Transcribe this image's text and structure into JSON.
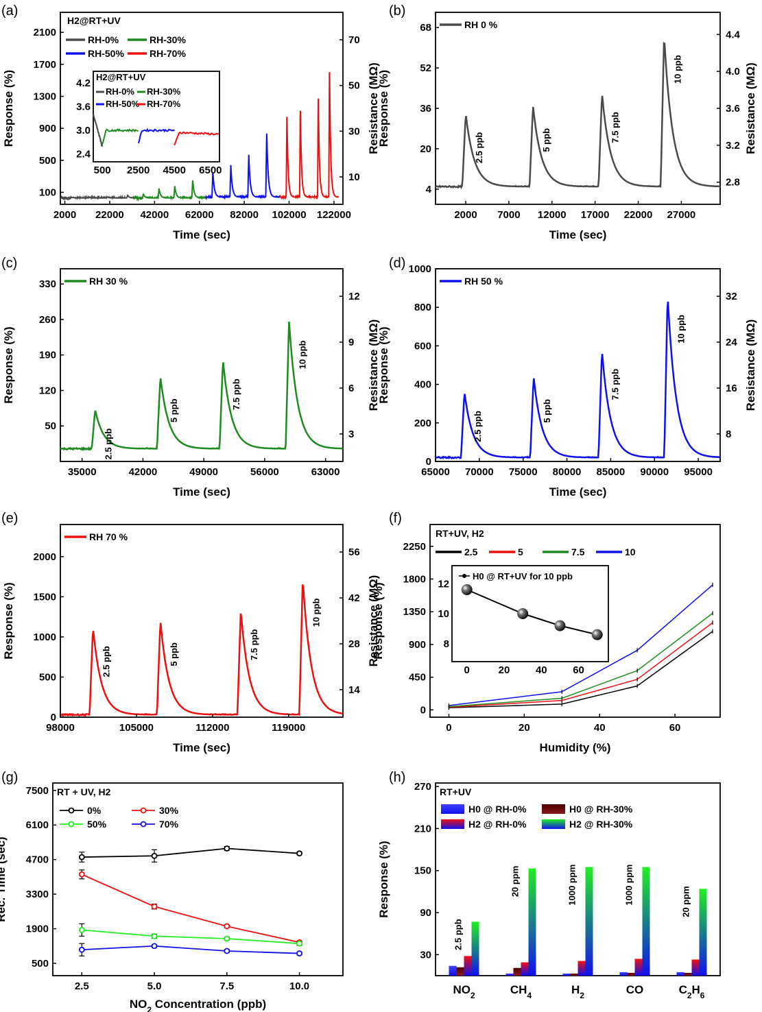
{
  "chart_data": [
    {
      "id": "a",
      "panel_label": "(a)",
      "type": "line",
      "title": "H2@RT+UV",
      "xlabel": "Time (sec)",
      "ylabel": "Response (%)",
      "y2label": "Resistance (MΩ)",
      "xlim": [
        0,
        126000
      ],
      "ylim": [
        -50,
        2350
      ],
      "y2lim": [
        0,
        75
      ],
      "xticks": [
        "2000",
        "22000",
        "42000",
        "62000",
        "82000",
        "102000",
        "122000"
      ],
      "yticks": [
        "100",
        "500",
        "900",
        "1300",
        "1700",
        "2100"
      ],
      "y2ticks": [
        "10",
        "30",
        "50",
        "70"
      ],
      "legend": [
        "RH-0%",
        "RH-30%",
        "RH-50%",
        "RH-70%"
      ],
      "colors": {
        "RH-0%": "#4a4a4a",
        "RH-30%": "#1f8a1f",
        "RH-50%": "#1010ee",
        "RH-70%": "#ee1010"
      },
      "series": [
        {
          "name": "RH-0%",
          "peaks": [
            {
              "x": 5000,
              "y": 38
            },
            {
              "x": 13000,
              "y": 36
            },
            {
              "x": 21000,
              "y": 42
            },
            {
              "x": 30000,
              "y": 64
            }
          ],
          "range": [
            0,
            33000
          ],
          "base": 30
        },
        {
          "name": "RH-30%",
          "peaks": [
            {
              "x": 37000,
              "y": 80
            },
            {
              "x": 44000,
              "y": 150
            },
            {
              "x": 51000,
              "y": 185
            },
            {
              "x": 59000,
              "y": 260
            }
          ],
          "range": [
            33000,
            65000
          ],
          "base": 30
        },
        {
          "name": "RH-50%",
          "peaks": [
            {
              "x": 68000,
              "y": 360
            },
            {
              "x": 76000,
              "y": 440
            },
            {
              "x": 84000,
              "y": 580
            },
            {
              "x": 92000,
              "y": 870
            }
          ],
          "range": [
            65000,
            98000
          ],
          "base": 40
        },
        {
          "name": "RH-70%",
          "peaks": [
            {
              "x": 101000,
              "y": 1110
            },
            {
              "x": 107000,
              "y": 1200
            },
            {
              "x": 115000,
              "y": 1330
            },
            {
              "x": 120000,
              "y": 1720
            }
          ],
          "range": [
            98000,
            124000
          ],
          "base": 40
        }
      ],
      "inset": {
        "title": "H2@RT+UV",
        "legend": [
          "RH-0%",
          "RH-30%",
          "RH-50%",
          "RH-70%"
        ],
        "xticks": [
          "500",
          "2500",
          "4500",
          "6500"
        ],
        "yticks": [
          "2.4",
          "3.0",
          "3.6",
          "4.2"
        ],
        "xlim": [
          0,
          7000
        ],
        "ylim": [
          2.2,
          4.5
        ]
      }
    },
    {
      "id": "b",
      "panel_label": "(b)",
      "type": "line",
      "xlabel": "Time (sec)",
      "ylabel": "Response (%)",
      "y2label": "Resistance (MΩ)",
      "legend": [
        "RH 0 %"
      ],
      "color": "#4a4a4a",
      "xlim": [
        -1500,
        31500
      ],
      "ylim": [
        -2,
        74
      ],
      "xticks": [
        "2000",
        "7000",
        "12000",
        "17000",
        "22000",
        "27000"
      ],
      "yticks": [
        "4",
        "20",
        "36",
        "52",
        "68"
      ],
      "y2ticks": [
        "2.8",
        "3.2",
        "3.6",
        "4.0",
        "4.4"
      ],
      "base": 5,
      "peaks": [
        {
          "x": 2000,
          "y": 34,
          "label": "2.5 ppb"
        },
        {
          "x": 9800,
          "y": 37,
          "label": "5 ppb"
        },
        {
          "x": 17800,
          "y": 42,
          "label": "7.5 ppb"
        },
        {
          "x": 25000,
          "y": 65,
          "label": "10 ppb"
        }
      ]
    },
    {
      "id": "c",
      "panel_label": "(c)",
      "type": "line",
      "xlabel": "Time (sec)",
      "ylabel": "Response (%)",
      "y2label": "Resistance (MΩ)",
      "legend": [
        "RH 30 %"
      ],
      "color": "#1f8a1f",
      "xlim": [
        32500,
        65000
      ],
      "ylim": [
        -20,
        360
      ],
      "xticks": [
        "35000",
        "42000",
        "49000",
        "56000",
        "63000"
      ],
      "yticks": [
        "50",
        "120",
        "190",
        "260",
        "330"
      ],
      "y2ticks": [
        "3",
        "6",
        "9",
        "12"
      ],
      "base": 5,
      "peaks": [
        {
          "x": 36500,
          "y": 82,
          "label": "2.5 ppb"
        },
        {
          "x": 44000,
          "y": 148,
          "label": "5 ppb"
        },
        {
          "x": 51200,
          "y": 180,
          "label": "7.5 ppb"
        },
        {
          "x": 58800,
          "y": 258,
          "label": "10 ppb"
        }
      ]
    },
    {
      "id": "d",
      "panel_label": "(d)",
      "type": "line",
      "xlabel": "Time (sec)",
      "ylabel": "Response (%)",
      "y2label": "Resistance (MΩ)",
      "legend": [
        "RH 50 %"
      ],
      "color": "#1010ee",
      "xlim": [
        65000,
        97500
      ],
      "ylim": [
        0,
        1000
      ],
      "xticks": [
        "65000",
        "70000",
        "75000",
        "80000",
        "85000",
        "90000",
        "95000"
      ],
      "yticks": [
        "0",
        "200",
        "400",
        "600",
        "800",
        "1000"
      ],
      "y2ticks": [
        "8",
        "16",
        "24",
        "32"
      ],
      "base": 20,
      "peaks": [
        {
          "x": 68300,
          "y": 360,
          "label": "2.5 ppb"
        },
        {
          "x": 76200,
          "y": 440,
          "label": "5 ppb"
        },
        {
          "x": 84000,
          "y": 578,
          "label": "7.5 ppb"
        },
        {
          "x": 91500,
          "y": 865,
          "label": "10 ppb"
        }
      ]
    },
    {
      "id": "e",
      "panel_label": "(e)",
      "type": "line",
      "xlabel": "Time (sec)",
      "ylabel": "Response (%)",
      "y2label": "Resistance (MΩ)",
      "legend": [
        "RH 70 %"
      ],
      "color": "#ee1010",
      "xlim": [
        98000,
        124000
      ],
      "ylim": [
        0,
        2400
      ],
      "xticks": [
        "98000",
        "105000",
        "112000",
        "119000"
      ],
      "yticks": [
        "0",
        "500",
        "1000",
        "1500",
        "2000"
      ],
      "y2ticks": [
        "14",
        "28",
        "42",
        "56"
      ],
      "base": 30,
      "peaks": [
        {
          "x": 101000,
          "y": 1120,
          "label": "2.5 ppb"
        },
        {
          "x": 107200,
          "y": 1210,
          "label": "5 ppb"
        },
        {
          "x": 114600,
          "y": 1330,
          "label": "7.5 ppb"
        },
        {
          "x": 120300,
          "y": 1730,
          "label": "10 ppb"
        }
      ]
    },
    {
      "id": "f",
      "panel_label": "(f)",
      "type": "line",
      "title": "RT+UV, H2",
      "xlabel": "Humidity (%)",
      "ylabel": "Response (%)",
      "xlim": [
        -5,
        72
      ],
      "ylim": [
        -100,
        2550
      ],
      "xticks": [
        "0",
        "20",
        "40",
        "60"
      ],
      "yticks": [
        "0",
        "450",
        "900",
        "1350",
        "1800",
        "2250"
      ],
      "x": [
        0,
        30,
        50,
        70
      ],
      "series": [
        {
          "name": "2.5",
          "color": "#000000",
          "values": [
            30,
            80,
            330,
            1080
          ]
        },
        {
          "name": "5",
          "color": "#ee1010",
          "values": [
            35,
            130,
            420,
            1200
          ]
        },
        {
          "name": "7.5",
          "color": "#1f8a1f",
          "values": [
            45,
            160,
            540,
            1330
          ]
        },
        {
          "name": "10",
          "color": "#1010ee",
          "values": [
            60,
            250,
            820,
            1720
          ]
        }
      ],
      "inset": {
        "title": "H0 @ RT+UV  for 10 ppb",
        "x": [
          0,
          30,
          50,
          70
        ],
        "values": [
          11.6,
          10.0,
          9.2,
          8.6
        ],
        "xticks": [
          "0",
          "20",
          "40",
          "60"
        ],
        "yticks": [
          "8",
          "10",
          "12"
        ],
        "xlim": [
          -8,
          76
        ],
        "ylim": [
          6.8,
          13.2
        ]
      }
    },
    {
      "id": "g",
      "panel_label": "(g)",
      "type": "line",
      "title": "RT + UV, H2",
      "xlabel": "NO2 Concentration (ppb)",
      "ylabel": "Rec. Time (sec)",
      "xlim": [
        1.5,
        11.5
      ],
      "ylim": [
        0,
        7800
      ],
      "xticks": [
        "2.5",
        "5.0",
        "7.5",
        "10.0"
      ],
      "yticks": [
        "500",
        "1900",
        "3300",
        "4700",
        "6100",
        "7500"
      ],
      "x": [
        2.5,
        5.0,
        7.5,
        10.0
      ],
      "series": [
        {
          "name": "0%",
          "color": "#000000",
          "values": [
            4800,
            4850,
            5150,
            4950
          ],
          "err": [
            200,
            250,
            80,
            60
          ]
        },
        {
          "name": "30%",
          "color": "#ee1010",
          "values": [
            4100,
            2800,
            2000,
            1350
          ],
          "err": [
            180,
            100,
            60,
            50
          ]
        },
        {
          "name": "50%",
          "color": "#22ee22",
          "values": [
            1850,
            1600,
            1500,
            1300
          ],
          "err": [
            250,
            80,
            60,
            80
          ]
        },
        {
          "name": "70%",
          "color": "#1010ee",
          "values": [
            1050,
            1200,
            1000,
            900
          ],
          "err": [
            250,
            60,
            60,
            60
          ]
        }
      ]
    },
    {
      "id": "h",
      "panel_label": "(h)",
      "type": "bar",
      "title": "RT+UV",
      "ylabel": "Response (%)",
      "ylim": [
        0,
        275
      ],
      "yticks": [
        "30",
        "90",
        "150",
        "210",
        "270"
      ],
      "categories": [
        "NO2",
        "CH4",
        "H2",
        "CO",
        "C2H6"
      ],
      "category_labels": [
        [
          "NO",
          "2"
        ],
        [
          "CH",
          "4"
        ],
        [
          "H",
          "2"
        ],
        [
          "CO",
          ""
        ],
        [
          "C",
          "2",
          "H",
          "6"
        ]
      ],
      "annotations": [
        "2.5 ppb",
        "20 ppm",
        "1000 ppm",
        "1000 ppm",
        "20 ppm"
      ],
      "series": [
        {
          "name": "H0 @ RH-0%",
          "values": [
            14,
            3,
            3,
            5,
            5
          ]
        },
        {
          "name": "H0 @ RH-30%",
          "values": [
            12,
            11,
            3,
            4,
            4
          ]
        },
        {
          "name": "H2 @ RH-0%",
          "values": [
            28,
            19,
            21,
            24,
            23
          ]
        },
        {
          "name": "H2 @ RH-30%",
          "values": [
            77,
            153,
            155,
            155,
            124
          ]
        }
      ]
    }
  ]
}
